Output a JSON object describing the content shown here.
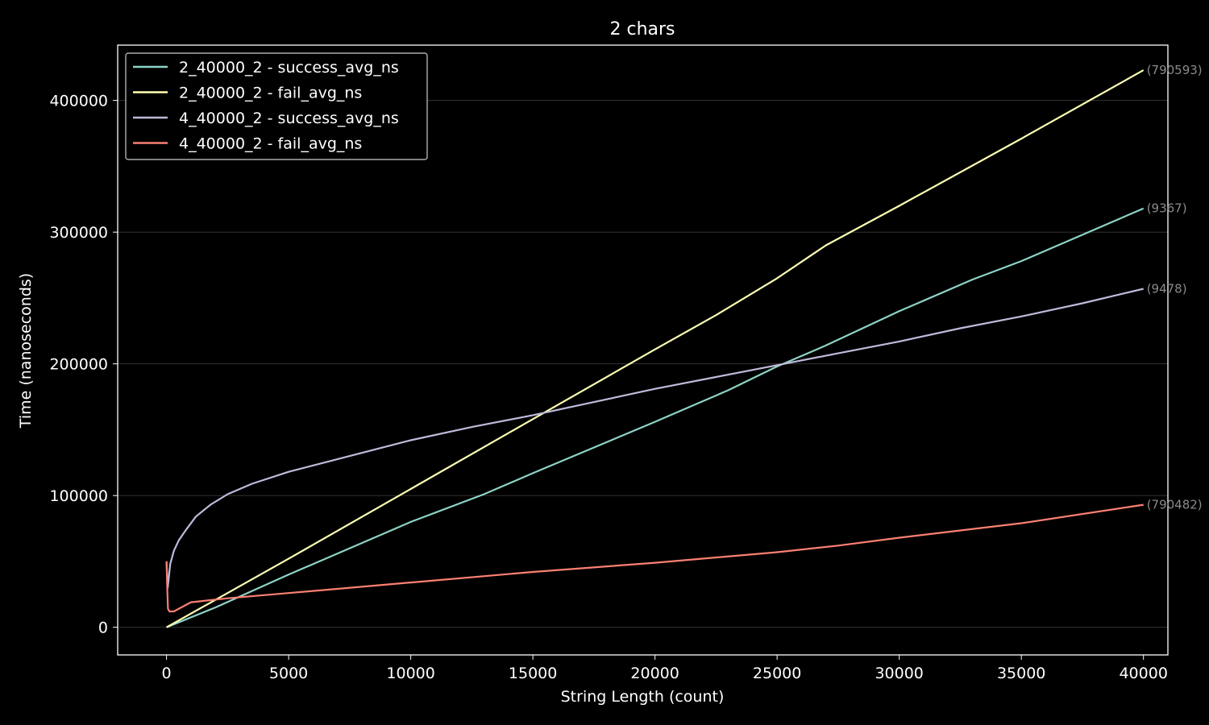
{
  "chart_data": {
    "type": "line",
    "title": "2 chars",
    "xlabel": "String Length (count)",
    "ylabel": "Time (nanoseconds)",
    "xlim": [
      -2000,
      41000
    ],
    "ylim": [
      -21000,
      442000
    ],
    "xticks": [
      0,
      5000,
      10000,
      15000,
      20000,
      25000,
      30000,
      35000,
      40000
    ],
    "yticks": [
      0,
      100000,
      200000,
      300000,
      400000
    ],
    "grid": "horizontal",
    "legend_position": "top-left",
    "background": "#000000",
    "series": [
      {
        "name": "2_40000_2 - success_avg_ns",
        "color": "#8dd3c7",
        "end_label": "(9367)",
        "points": [
          [
            0,
            0
          ],
          [
            2000,
            15000
          ],
          [
            5000,
            40000
          ],
          [
            10000,
            80000
          ],
          [
            13000,
            101000
          ],
          [
            15000,
            117000
          ],
          [
            20000,
            156000
          ],
          [
            23000,
            180000
          ],
          [
            25000,
            198000
          ],
          [
            27000,
            214000
          ],
          [
            30000,
            240000
          ],
          [
            33000,
            264000
          ],
          [
            35000,
            278000
          ],
          [
            37000,
            294000
          ],
          [
            40000,
            318000
          ]
        ]
      },
      {
        "name": "2_40000_2 - fail_avg_ns",
        "color": "#ffffb3",
        "end_label": "(790593)",
        "points": [
          [
            0,
            0
          ],
          [
            5000,
            52000
          ],
          [
            10000,
            105000
          ],
          [
            15000,
            158000
          ],
          [
            20000,
            211000
          ],
          [
            22500,
            237000
          ],
          [
            25000,
            265000
          ],
          [
            27000,
            290000
          ],
          [
            30000,
            320000
          ],
          [
            35000,
            371000
          ],
          [
            40000,
            423000
          ]
        ]
      },
      {
        "name": "4_40000_2 - success_avg_ns",
        "color": "#bebada",
        "end_label": "(9478)",
        "points": [
          [
            0,
            50000
          ],
          [
            50,
            30000
          ],
          [
            150,
            48000
          ],
          [
            300,
            58000
          ],
          [
            500,
            66000
          ],
          [
            800,
            74000
          ],
          [
            1200,
            84000
          ],
          [
            1800,
            93000
          ],
          [
            2500,
            101000
          ],
          [
            3500,
            109000
          ],
          [
            5000,
            118000
          ],
          [
            7500,
            130000
          ],
          [
            10000,
            142000
          ],
          [
            12500,
            152000
          ],
          [
            15000,
            161000
          ],
          [
            17500,
            171000
          ],
          [
            20000,
            181000
          ],
          [
            22500,
            190000
          ],
          [
            25000,
            199000
          ],
          [
            27500,
            208000
          ],
          [
            30000,
            217000
          ],
          [
            32500,
            227000
          ],
          [
            35000,
            236000
          ],
          [
            37500,
            246000
          ],
          [
            40000,
            257000
          ]
        ]
      },
      {
        "name": "4_40000_2 - fail_avg_ns",
        "color": "#fb8072",
        "end_label": "(790482)",
        "points": [
          [
            0,
            50000
          ],
          [
            30,
            30000
          ],
          [
            60,
            14000
          ],
          [
            120,
            12000
          ],
          [
            300,
            12000
          ],
          [
            600,
            15000
          ],
          [
            1000,
            19000
          ],
          [
            1500,
            20000
          ],
          [
            2500,
            22000
          ],
          [
            5000,
            26000
          ],
          [
            10000,
            34000
          ],
          [
            15000,
            42000
          ],
          [
            20000,
            49000
          ],
          [
            25000,
            57000
          ],
          [
            27500,
            62000
          ],
          [
            30000,
            68000
          ],
          [
            35000,
            79000
          ],
          [
            40000,
            93000
          ]
        ]
      }
    ]
  }
}
